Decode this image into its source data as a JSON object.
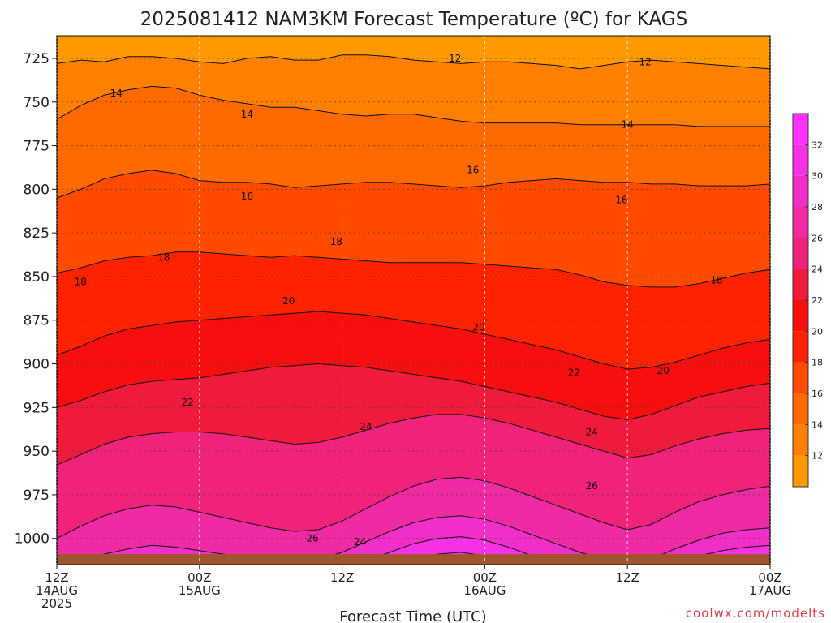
{
  "chart_data": {
    "type": "contour",
    "title": "2025081412 NAM3KM Forecast Temperature (ºC) for KAGS",
    "xlabel": "Forecast Time (UTC)",
    "ylabel": "",
    "credit": "coolwx.com/modelts",
    "y_axis": {
      "ticks": [
        725,
        750,
        775,
        800,
        825,
        850,
        875,
        900,
        925,
        950,
        975,
        1000
      ],
      "range_hPa": [
        712,
        1015
      ],
      "inverted": true
    },
    "x_axis": {
      "range_hours": [
        0,
        60
      ],
      "ticks": [
        {
          "hour": 0,
          "line1": "12Z",
          "line2": "14AUG",
          "line3": "2025"
        },
        {
          "hour": 12,
          "line1": "00Z",
          "line2": "15AUG",
          "line3": ""
        },
        {
          "hour": 24,
          "line1": "12Z",
          "line2": "",
          "line3": ""
        },
        {
          "hour": 36,
          "line1": "00Z",
          "line2": "16AUG",
          "line3": ""
        },
        {
          "hour": 48,
          "line1": "12Z",
          "line2": "",
          "line3": ""
        },
        {
          "hour": 60,
          "line1": "00Z",
          "line2": "17AUG",
          "line3": ""
        }
      ]
    },
    "grid": true,
    "colorbar": {
      "placement": "right",
      "ticks": [
        "12",
        "14",
        "16",
        "18",
        "20",
        "22",
        "24",
        "26",
        "28",
        "30",
        "32"
      ],
      "levels": [
        10,
        12,
        14,
        16,
        18,
        20,
        22,
        24,
        26,
        28,
        30,
        32,
        34
      ],
      "colors": [
        "#ff9900",
        "#ff8000",
        "#ff6a00",
        "#ff4a00",
        "#ff2200",
        "#f70e0e",
        "#f01a3c",
        "#f0227a",
        "#f02aa3",
        "#f22ec8",
        "#f630e6",
        "#ff33ff"
      ]
    },
    "isotherms": [
      {
        "value": 12,
        "label": "12",
        "pressure": [
          728,
          726,
          727,
          724,
          724,
          725,
          727,
          728,
          725,
          724,
          726,
          726,
          723,
          723,
          724,
          726,
          727,
          728,
          727,
          727,
          728,
          729,
          731,
          729,
          727,
          726,
          727,
          728,
          729,
          730,
          731
        ]
      },
      {
        "value": 14,
        "label": "14",
        "pressure": [
          760,
          752,
          746,
          743,
          741,
          742,
          746,
          749,
          751,
          753,
          753,
          755,
          757,
          758,
          757,
          757,
          759,
          761,
          762,
          762,
          762,
          762,
          763,
          763,
          763,
          763,
          763,
          764,
          764,
          764,
          764
        ]
      },
      {
        "value": 16,
        "label": "16",
        "pressure": [
          805,
          800,
          794,
          791,
          789,
          791,
          795,
          796,
          796,
          797,
          799,
          798,
          797,
          796,
          796,
          797,
          798,
          799,
          798,
          796,
          795,
          794,
          795,
          796,
          796,
          797,
          797,
          798,
          798,
          798,
          797
        ]
      },
      {
        "value": 18,
        "label": "18",
        "pressure": [
          848,
          845,
          841,
          839,
          838,
          836,
          836,
          837,
          838,
          839,
          838,
          839,
          840,
          841,
          842,
          842,
          842,
          842,
          843,
          844,
          845,
          846,
          849,
          853,
          855,
          856,
          856,
          854,
          851,
          848,
          846
        ]
      },
      {
        "value": 20,
        "label": "20",
        "pressure": [
          895,
          890,
          884,
          880,
          878,
          876,
          875,
          874,
          873,
          872,
          871,
          870,
          871,
          872,
          874,
          876,
          878,
          880,
          883,
          886,
          889,
          892,
          896,
          900,
          903,
          902,
          899,
          895,
          891,
          888,
          886
        ]
      },
      {
        "value": 22,
        "label": "22",
        "pressure": [
          925,
          921,
          916,
          912,
          910,
          909,
          908,
          906,
          904,
          902,
          901,
          900,
          901,
          902,
          904,
          906,
          908,
          910,
          913,
          916,
          919,
          922,
          926,
          930,
          932,
          929,
          924,
          919,
          916,
          913,
          911
        ]
      },
      {
        "value": 24,
        "label": "24",
        "pressure": [
          958,
          952,
          946,
          942,
          940,
          939,
          939,
          940,
          942,
          944,
          946,
          945,
          942,
          938,
          934,
          931,
          929,
          929,
          931,
          934,
          938,
          942,
          946,
          950,
          954,
          952,
          947,
          943,
          940,
          938,
          937
        ]
      },
      {
        "value": 26,
        "label": "26",
        "pressure": [
          1000,
          993,
          987,
          983,
          981,
          982,
          985,
          988,
          991,
          994,
          996,
          995,
          990,
          983,
          976,
          970,
          966,
          965,
          967,
          971,
          976,
          981,
          986,
          991,
          995,
          992,
          985,
          979,
          975,
          972,
          970
        ]
      },
      {
        "value": 28,
        "label": "",
        "pressure": [
          1015,
          1013,
          1009,
          1006,
          1004,
          1005,
          1007,
          1009,
          1011,
          1012,
          1013,
          1012,
          1008,
          1002,
          996,
          991,
          988,
          987,
          989,
          993,
          998,
          1003,
          1008,
          1012,
          1014,
          1012,
          1006,
          1001,
          997,
          995,
          994
        ]
      },
      {
        "value": 30,
        "label": "",
        "pressure": [
          1015,
          1015,
          1015,
          1014,
          1012,
          1012,
          1013,
          1015,
          1015,
          1015,
          1015,
          1015,
          1015,
          1013,
          1008,
          1003,
          1000,
          999,
          1001,
          1005,
          1010,
          1014,
          1015,
          1015,
          1015,
          1015,
          1014,
          1010,
          1007,
          1005,
          1004
        ]
      },
      {
        "value": 32,
        "label": "",
        "pressure": [
          1015,
          1015,
          1015,
          1015,
          1015,
          1015,
          1015,
          1015,
          1015,
          1015,
          1015,
          1015,
          1015,
          1015,
          1015,
          1012,
          1009,
          1008,
          1010,
          1013,
          1015,
          1015,
          1015,
          1015,
          1015,
          1015,
          1015,
          1015,
          1015,
          1013,
          1011
        ]
      }
    ],
    "contour_labels": [
      {
        "value": "12",
        "hour": 33.5,
        "pressure": 725
      },
      {
        "value": "12",
        "hour": 49.5,
        "pressure": 727
      },
      {
        "value": "14",
        "hour": 5,
        "pressure": 745
      },
      {
        "value": "14",
        "hour": 16,
        "pressure": 757
      },
      {
        "value": "14",
        "hour": 48,
        "pressure": 763
      },
      {
        "value": "16",
        "hour": 16,
        "pressure": 804
      },
      {
        "value": "16",
        "hour": 35,
        "pressure": 789
      },
      {
        "value": "16",
        "hour": 47.5,
        "pressure": 806
      },
      {
        "value": "18",
        "hour": 2,
        "pressure": 853
      },
      {
        "value": "18",
        "hour": 9,
        "pressure": 839
      },
      {
        "value": "18",
        "hour": 23.5,
        "pressure": 830
      },
      {
        "value": "18",
        "hour": 55.5,
        "pressure": 852
      },
      {
        "value": "20",
        "hour": 19.5,
        "pressure": 864
      },
      {
        "value": "20",
        "hour": 35.5,
        "pressure": 879
      },
      {
        "value": "20",
        "hour": 51,
        "pressure": 904
      },
      {
        "value": "22",
        "hour": 11,
        "pressure": 922
      },
      {
        "value": "22",
        "hour": 43.5,
        "pressure": 905
      },
      {
        "value": "24",
        "hour": 26,
        "pressure": 936
      },
      {
        "value": "24",
        "hour": 45,
        "pressure": 939
      },
      {
        "value": "26",
        "hour": 21.5,
        "pressure": 1000
      },
      {
        "value": "26",
        "hour": 45,
        "pressure": 970
      },
      {
        "value": "24",
        "hour": 25.5,
        "pressure": 1002
      }
    ]
  }
}
